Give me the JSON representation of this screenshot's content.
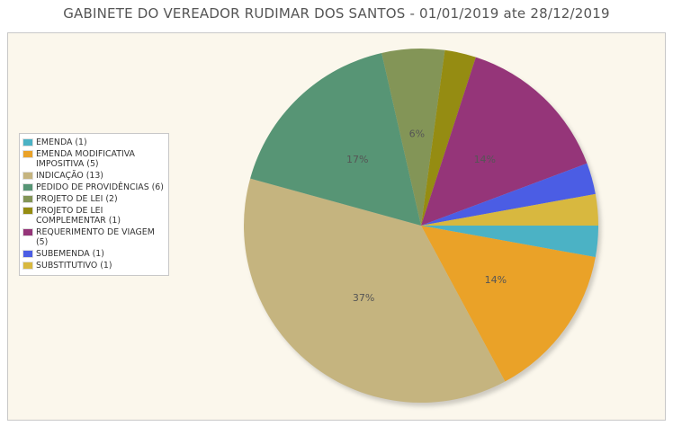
{
  "chart_data": {
    "type": "pie",
    "title": "GABINETE DO VEREADOR RUDIMAR DOS SANTOS - 01/01/2019 ate 28/12/2019",
    "legend_position": "left",
    "slices": [
      {
        "label": "EMENDA (1)",
        "value": 1,
        "color": "#4bb2c5",
        "pct_label": ""
      },
      {
        "label": "EMENDA MODIFICATIVA IMPOSITIVA (5)",
        "value": 5,
        "color": "#eaa228",
        "pct_label": "14%"
      },
      {
        "label": "INDICAÇÃO (13)",
        "value": 13,
        "color": "#c5b47f",
        "pct_label": "37%"
      },
      {
        "label": "PEDIDO DE PROVIDÊNCIAS (6)",
        "value": 6,
        "color": "#579575",
        "pct_label": "17%"
      },
      {
        "label": "PROJETO DE LEI (2)",
        "value": 2,
        "color": "#839557",
        "pct_label": "6%"
      },
      {
        "label": "PROJETO DE LEI COMPLEMENTAR (1)",
        "value": 1,
        "color": "#958c12",
        "pct_label": ""
      },
      {
        "label": "REQUERIMENTO DE VIAGEM (5)",
        "value": 5,
        "color": "#953579",
        "pct_label": "14%"
      },
      {
        "label": "SUBEMENDA (1)",
        "value": 1,
        "color": "#4b5de4",
        "pct_label": ""
      },
      {
        "label": "SUBSTITUTIVO (1)",
        "value": 1,
        "color": "#d8b83f",
        "pct_label": ""
      }
    ]
  }
}
